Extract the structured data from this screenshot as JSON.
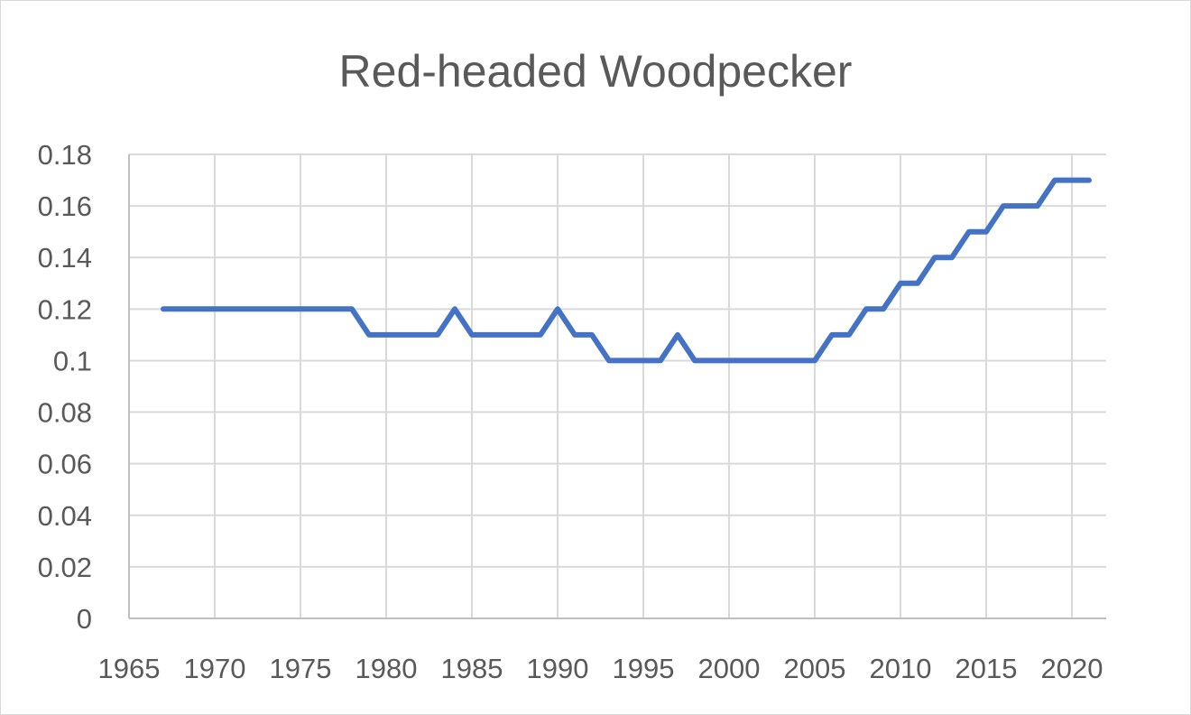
{
  "chart_data": {
    "type": "line",
    "title": "Red-headed Woodpecker",
    "xlabel": "",
    "ylabel": "",
    "xlim": [
      1965,
      2022
    ],
    "ylim": [
      0,
      0.18
    ],
    "x_ticks": [
      1965,
      1970,
      1975,
      1980,
      1985,
      1990,
      1995,
      2000,
      2005,
      2010,
      2015,
      2020
    ],
    "y_ticks": [
      0,
      0.02,
      0.04,
      0.06,
      0.08,
      0.1,
      0.12,
      0.14,
      0.16,
      0.18
    ],
    "y_tick_labels": [
      "0",
      "0.02",
      "0.04",
      "0.06",
      "0.08",
      "0.1",
      "0.12",
      "0.14",
      "0.16",
      "0.18"
    ],
    "grid": true,
    "legend": "none",
    "series": [
      {
        "color": "#4472c4",
        "x": [
          1967,
          1968,
          1969,
          1970,
          1971,
          1972,
          1973,
          1974,
          1975,
          1976,
          1977,
          1978,
          1979,
          1980,
          1981,
          1982,
          1983,
          1984,
          1985,
          1986,
          1987,
          1988,
          1989,
          1990,
          1991,
          1992,
          1993,
          1994,
          1995,
          1996,
          1997,
          1998,
          1999,
          2000,
          2001,
          2002,
          2003,
          2004,
          2005,
          2006,
          2007,
          2008,
          2009,
          2010,
          2011,
          2012,
          2013,
          2014,
          2015,
          2016,
          2017,
          2018,
          2019,
          2020,
          2021
        ],
        "values": [
          0.12,
          0.12,
          0.12,
          0.12,
          0.12,
          0.12,
          0.12,
          0.12,
          0.12,
          0.12,
          0.12,
          0.12,
          0.11,
          0.11,
          0.11,
          0.11,
          0.11,
          0.12,
          0.11,
          0.11,
          0.11,
          0.11,
          0.11,
          0.12,
          0.11,
          0.11,
          0.1,
          0.1,
          0.1,
          0.1,
          0.11,
          0.1,
          0.1,
          0.1,
          0.1,
          0.1,
          0.1,
          0.1,
          0.1,
          0.11,
          0.11,
          0.12,
          0.12,
          0.13,
          0.13,
          0.14,
          0.14,
          0.15,
          0.15,
          0.16,
          0.16,
          0.16,
          0.17,
          0.17,
          0.17
        ]
      }
    ]
  }
}
